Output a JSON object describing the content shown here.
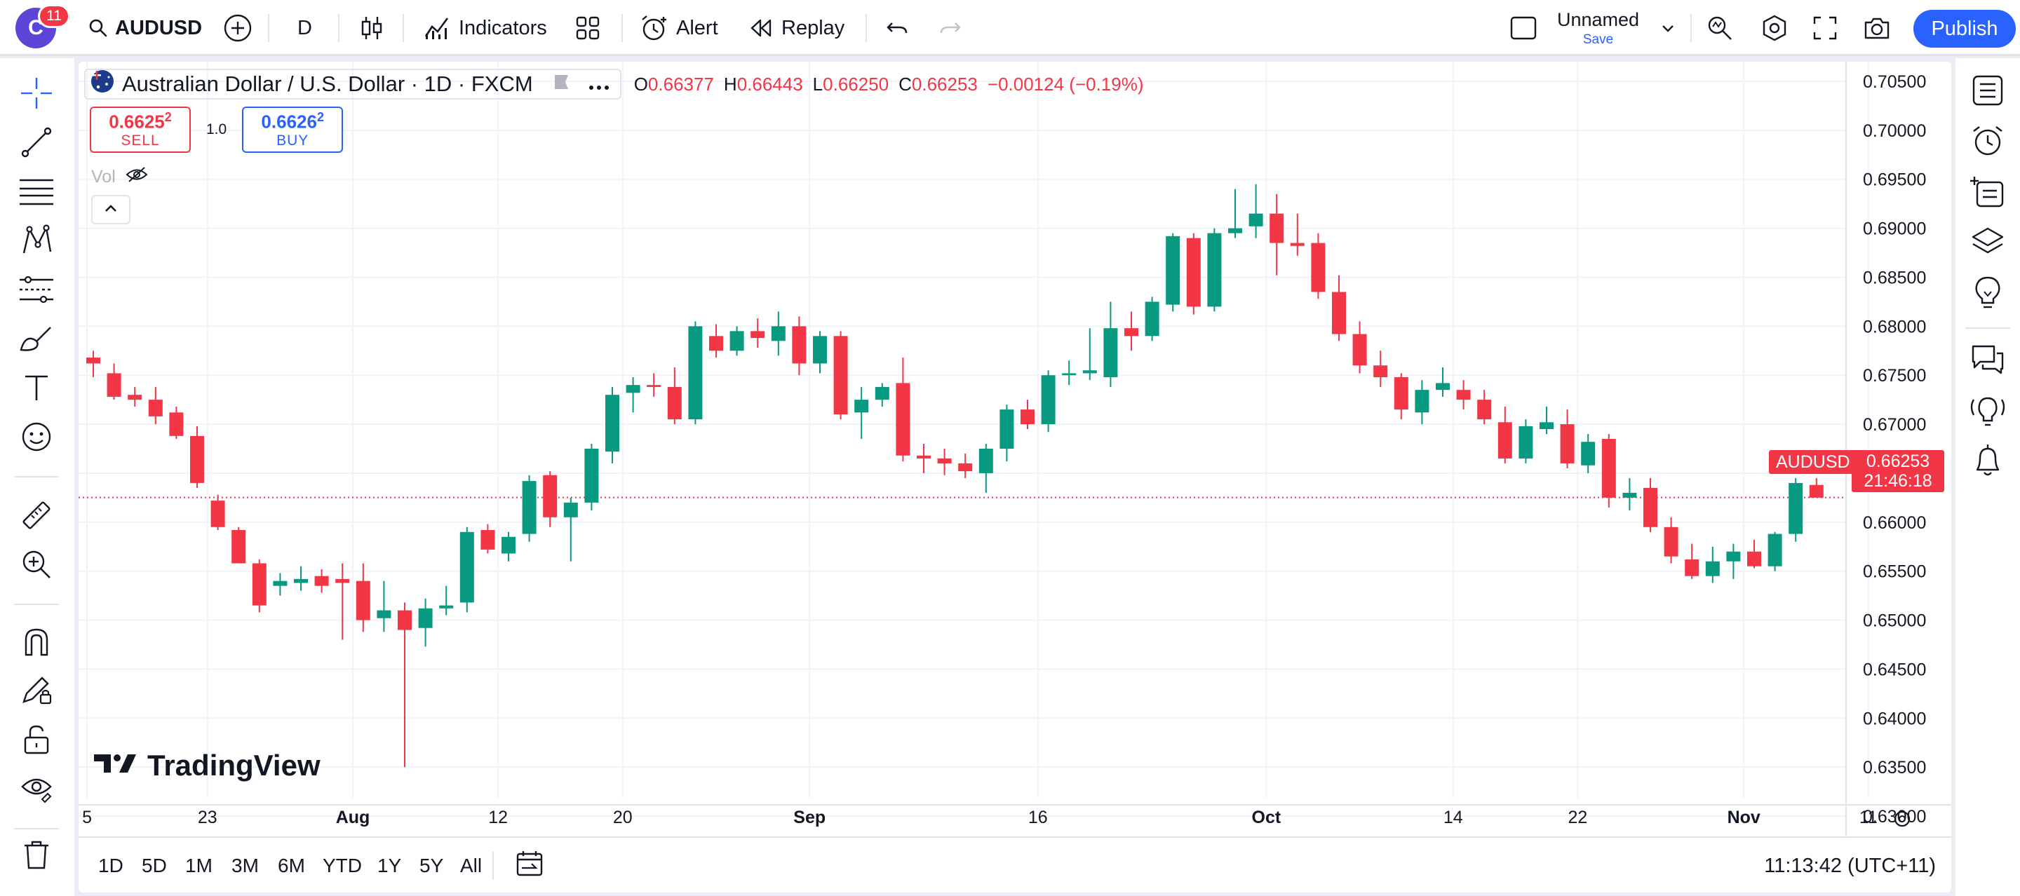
{
  "topbar": {
    "avatar_letter": "C",
    "notifications": "11",
    "symbol": "AUDUSD",
    "interval": "D",
    "indicators_label": "Indicators",
    "alert_label": "Alert",
    "replay_label": "Replay",
    "layout_name": "Unnamed",
    "save_label": "Save",
    "publish_label": "Publish"
  },
  "legend": {
    "title": "Australian Dollar / U.S. Dollar · 1D · FXCM",
    "o_label": "O",
    "o_value": "0.66377",
    "h_label": "H",
    "h_value": "0.66443",
    "l_label": "L",
    "l_value": "0.66250",
    "c_label": "C",
    "c_value": "0.66253",
    "change": "−0.00124 (−0.19%)"
  },
  "trade": {
    "sell_price": "0.6625",
    "sell_sup": "2",
    "sell_label": "SELL",
    "quantity": "1.0",
    "buy_price": "0.6626",
    "buy_sup": "2",
    "buy_label": "BUY"
  },
  "volume_label": "Vol",
  "watermark": "TradingView",
  "price_badge": {
    "symbol": "AUDUSD",
    "price": "0.66253",
    "countdown": "21:46:18"
  },
  "colors": {
    "up": "#089981",
    "down": "#f23645",
    "accent": "#2962ff"
  },
  "bottom": {
    "ranges": [
      "1D",
      "5D",
      "1M",
      "3M",
      "6M",
      "YTD",
      "1Y",
      "5Y",
      "All"
    ],
    "clock": "11:13:42 (UTC+11)"
  },
  "chart_data": {
    "type": "candlestick",
    "title": "",
    "y_ticks": [
      "0.70500",
      "0.70000",
      "0.69500",
      "0.69000",
      "0.68500",
      "0.68000",
      "0.67500",
      "0.67000",
      "0.66500",
      "0.66000",
      "0.65500",
      "0.65000",
      "0.64500",
      "0.64000",
      "0.63500",
      "0.63000"
    ],
    "x_ticks": [
      {
        "label": "5",
        "day": -0.3
      },
      {
        "label": "23",
        "day": 5.5
      },
      {
        "label": "Aug",
        "day": 12.5
      },
      {
        "label": "12",
        "day": 19.5
      },
      {
        "label": "20",
        "day": 25.5
      },
      {
        "label": "Sep",
        "day": 34.5
      },
      {
        "label": "16",
        "day": 45.5
      },
      {
        "label": "Oct",
        "day": 56.5
      },
      {
        "label": "14",
        "day": 65.5
      },
      {
        "label": "22",
        "day": 71.5
      },
      {
        "label": "Nov",
        "day": 79.5
      },
      {
        "label": "11",
        "day": 85.5
      }
    ],
    "ylim": [
      0.626,
      0.706
    ],
    "last_price": 0.66253,
    "candles": [
      [
        0.6768,
        0.6775,
        0.6748,
        0.6762
      ],
      [
        0.6752,
        0.6762,
        0.6725,
        0.6728
      ],
      [
        0.673,
        0.6738,
        0.6718,
        0.6725
      ],
      [
        0.6725,
        0.6738,
        0.67,
        0.6708
      ],
      [
        0.6712,
        0.6718,
        0.6685,
        0.6688
      ],
      [
        0.6688,
        0.6698,
        0.6635,
        0.664
      ],
      [
        0.6622,
        0.6628,
        0.6592,
        0.6595
      ],
      [
        0.6592,
        0.6595,
        0.656,
        0.6558
      ],
      [
        0.6558,
        0.6562,
        0.6508,
        0.6515
      ],
      [
        0.6535,
        0.6548,
        0.6525,
        0.654
      ],
      [
        0.6538,
        0.6555,
        0.653,
        0.6542
      ],
      [
        0.6545,
        0.6552,
        0.6528,
        0.6535
      ],
      [
        0.6542,
        0.6558,
        0.648,
        0.6538
      ],
      [
        0.654,
        0.6558,
        0.6488,
        0.65
      ],
      [
        0.6502,
        0.654,
        0.6488,
        0.651
      ],
      [
        0.651,
        0.6518,
        0.635,
        0.649
      ],
      [
        0.6492,
        0.6522,
        0.6473,
        0.6512
      ],
      [
        0.6512,
        0.6535,
        0.6505,
        0.6515
      ],
      [
        0.6518,
        0.6595,
        0.6508,
        0.659
      ],
      [
        0.6592,
        0.6598,
        0.6568,
        0.6572
      ],
      [
        0.6568,
        0.659,
        0.656,
        0.6585
      ],
      [
        0.6588,
        0.6648,
        0.658,
        0.6642
      ],
      [
        0.6648,
        0.6652,
        0.6595,
        0.6605
      ],
      [
        0.6605,
        0.6625,
        0.656,
        0.662
      ],
      [
        0.662,
        0.668,
        0.6612,
        0.6675
      ],
      [
        0.6672,
        0.6738,
        0.666,
        0.673
      ],
      [
        0.6732,
        0.6748,
        0.6712,
        0.674
      ],
      [
        0.674,
        0.6752,
        0.6728,
        0.6738
      ],
      [
        0.6738,
        0.6758,
        0.67,
        0.6705
      ],
      [
        0.6705,
        0.6805,
        0.67,
        0.68
      ],
      [
        0.679,
        0.6802,
        0.6768,
        0.6775
      ],
      [
        0.6775,
        0.68,
        0.677,
        0.6795
      ],
      [
        0.6795,
        0.6808,
        0.6778,
        0.6788
      ],
      [
        0.6785,
        0.6815,
        0.677,
        0.68
      ],
      [
        0.68,
        0.681,
        0.675,
        0.6762
      ],
      [
        0.6762,
        0.6795,
        0.6752,
        0.679
      ],
      [
        0.679,
        0.6795,
        0.6705,
        0.671
      ],
      [
        0.6712,
        0.6738,
        0.6685,
        0.6725
      ],
      [
        0.6725,
        0.6742,
        0.6718,
        0.6738
      ],
      [
        0.6742,
        0.6768,
        0.6662,
        0.6668
      ],
      [
        0.6668,
        0.668,
        0.665,
        0.6665
      ],
      [
        0.6665,
        0.6675,
        0.6648,
        0.666
      ],
      [
        0.666,
        0.667,
        0.6645,
        0.6652
      ],
      [
        0.665,
        0.668,
        0.663,
        0.6675
      ],
      [
        0.6675,
        0.672,
        0.6662,
        0.6715
      ],
      [
        0.6715,
        0.6725,
        0.6695,
        0.67
      ],
      [
        0.67,
        0.6755,
        0.6692,
        0.675
      ],
      [
        0.675,
        0.6765,
        0.674,
        0.6752
      ],
      [
        0.6752,
        0.6798,
        0.6745,
        0.6755
      ],
      [
        0.6748,
        0.6825,
        0.6738,
        0.6798
      ],
      [
        0.6798,
        0.6815,
        0.6775,
        0.679
      ],
      [
        0.679,
        0.683,
        0.6785,
        0.6825
      ],
      [
        0.6822,
        0.6895,
        0.6815,
        0.6892
      ],
      [
        0.689,
        0.6895,
        0.6812,
        0.682
      ],
      [
        0.682,
        0.69,
        0.6815,
        0.6895
      ],
      [
        0.6895,
        0.694,
        0.689,
        0.69
      ],
      [
        0.6902,
        0.6945,
        0.689,
        0.6915
      ],
      [
        0.6915,
        0.6935,
        0.6852,
        0.6885
      ],
      [
        0.6885,
        0.6915,
        0.6872,
        0.6882
      ],
      [
        0.6885,
        0.6895,
        0.6828,
        0.6835
      ],
      [
        0.6835,
        0.6852,
        0.6785,
        0.6792
      ],
      [
        0.6792,
        0.6805,
        0.6752,
        0.676
      ],
      [
        0.676,
        0.6775,
        0.6738,
        0.6748
      ],
      [
        0.6748,
        0.6752,
        0.6705,
        0.6715
      ],
      [
        0.6712,
        0.6745,
        0.67,
        0.6735
      ],
      [
        0.6735,
        0.6758,
        0.6728,
        0.6742
      ],
      [
        0.6735,
        0.6745,
        0.6715,
        0.6725
      ],
      [
        0.6725,
        0.6735,
        0.67,
        0.6705
      ],
      [
        0.6702,
        0.6718,
        0.666,
        0.6665
      ],
      [
        0.6665,
        0.6705,
        0.666,
        0.6698
      ],
      [
        0.6695,
        0.6718,
        0.669,
        0.6702
      ],
      [
        0.67,
        0.6715,
        0.6655,
        0.666
      ],
      [
        0.6658,
        0.669,
        0.665,
        0.6682
      ],
      [
        0.6685,
        0.669,
        0.6615,
        0.6625
      ],
      [
        0.6625,
        0.6645,
        0.6612,
        0.663
      ],
      [
        0.6635,
        0.6645,
        0.659,
        0.6595
      ],
      [
        0.6595,
        0.6605,
        0.6558,
        0.6565
      ],
      [
        0.6562,
        0.6578,
        0.6542,
        0.6545
      ],
      [
        0.6545,
        0.6575,
        0.6538,
        0.656
      ],
      [
        0.656,
        0.6578,
        0.6542,
        0.657
      ],
      [
        0.657,
        0.6582,
        0.6553,
        0.6555
      ],
      [
        0.6555,
        0.659,
        0.655,
        0.6588
      ],
      [
        0.6588,
        0.6645,
        0.658,
        0.664
      ],
      [
        0.6638,
        0.6645,
        0.6625,
        0.6625
      ]
    ]
  }
}
